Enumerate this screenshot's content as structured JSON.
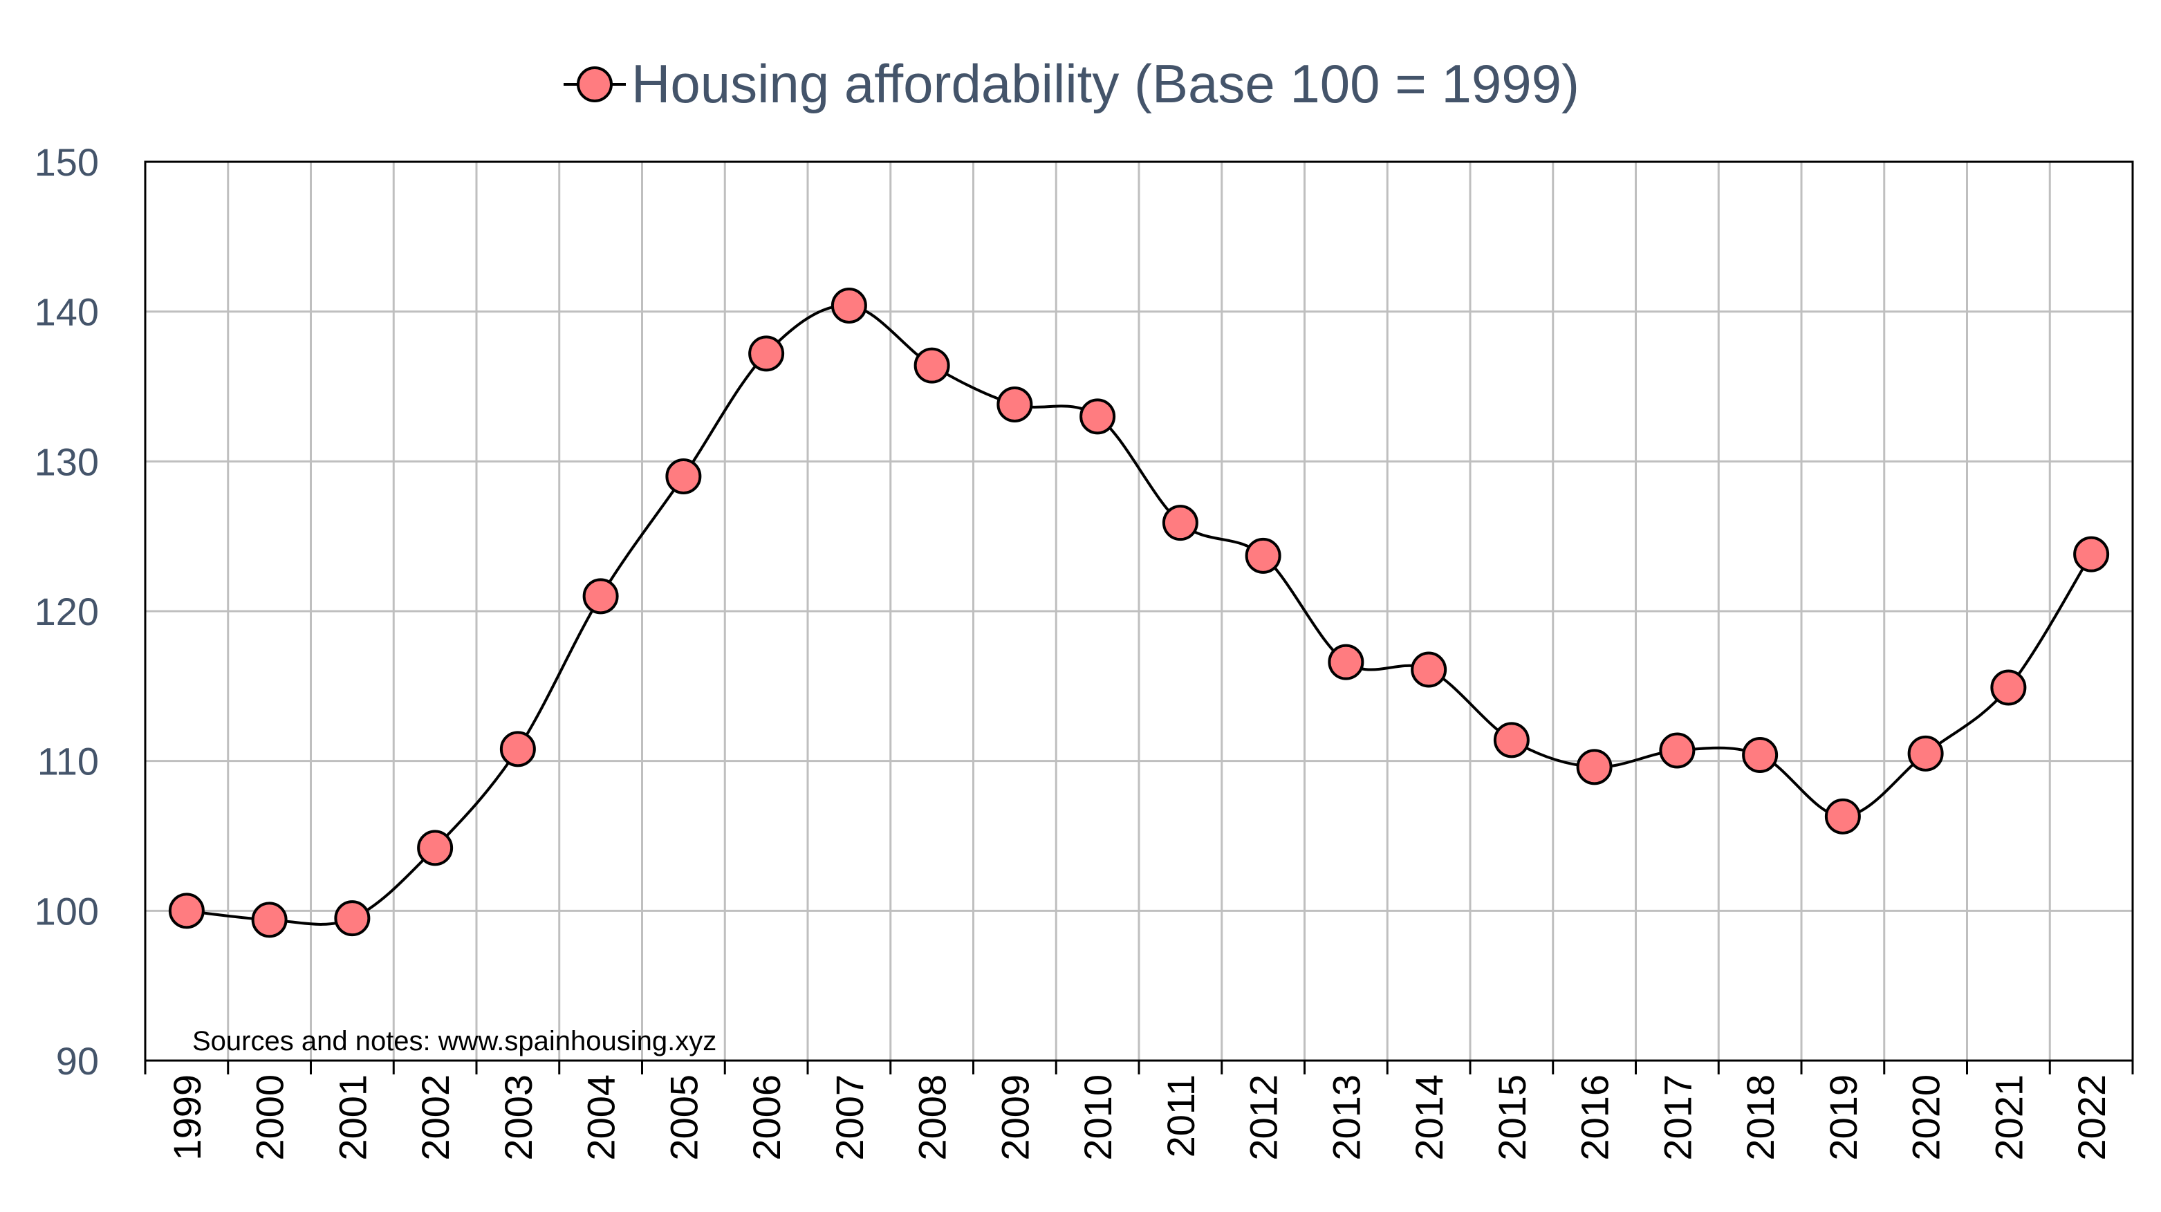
{
  "chart_data": {
    "type": "line",
    "title": "Housing affordability (Base 100 = 1999)",
    "x": [
      "1999",
      "2000",
      "2001",
      "2002",
      "2003",
      "2004",
      "2005",
      "2006",
      "2007",
      "2008",
      "2009",
      "2010",
      "2011",
      "2012",
      "2013",
      "2014",
      "2015",
      "2016",
      "2017",
      "2018",
      "2019",
      "2020",
      "2021",
      "2022"
    ],
    "series": [
      {
        "name": "Housing affordability (Base 100 = 1999)",
        "values": [
          100.0,
          99.4,
          99.5,
          104.2,
          110.8,
          121.0,
          129.0,
          137.2,
          140.4,
          136.4,
          133.8,
          133.0,
          125.9,
          123.7,
          116.6,
          116.1,
          111.4,
          109.6,
          110.7,
          110.4,
          106.3,
          110.5,
          114.9,
          123.8
        ]
      }
    ],
    "yticks": [
      "90",
      "100",
      "110",
      "120",
      "130",
      "140",
      "150"
    ],
    "ylim": [
      90,
      150
    ],
    "grid": true,
    "legend": "top-center",
    "note": "Sources and notes: www.spainhousing.xyz",
    "colors": {
      "marker_fill": "#ff7c80",
      "line": "#000000",
      "text": "#44546a",
      "grid": "#bfbfbf"
    }
  }
}
